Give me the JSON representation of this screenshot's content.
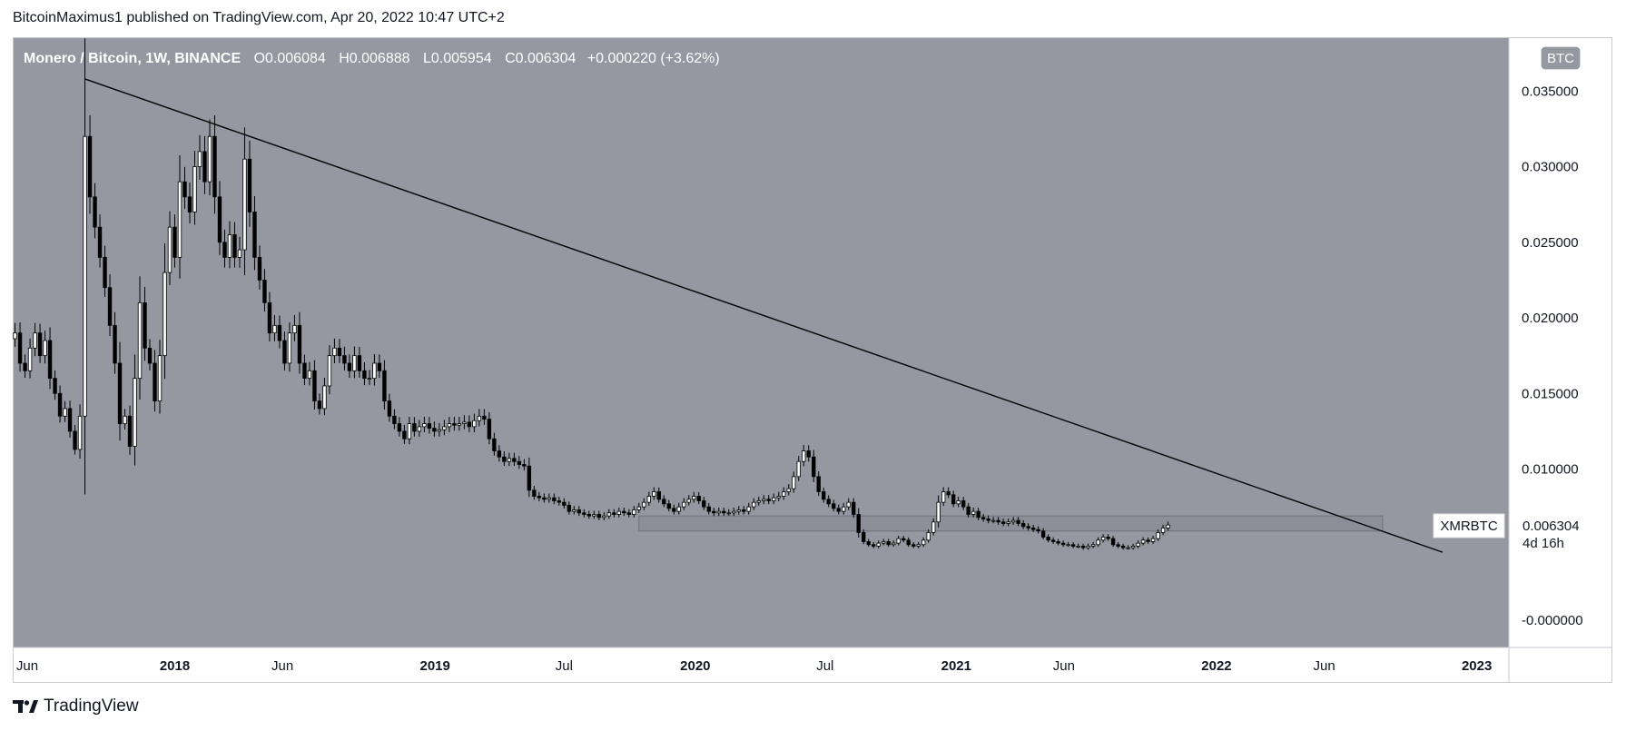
{
  "header": {
    "published_by": "BitcoinMaximus1 published on TradingView.com, Apr 20, 2022 10:47 UTC+2"
  },
  "footer": {
    "brand": "TradingView"
  },
  "legend": {
    "symbol": "Monero / Bitcoin, 1W, BINANCE",
    "o_label": "O",
    "o_value": "0.006084",
    "h_label": "H",
    "h_value": "0.006888",
    "l_label": "L",
    "l_value": "0.005954",
    "c_label": "C",
    "c_value": "0.006304",
    "change": "+0.000220 (+3.62%)"
  },
  "currency_badge": "BTC",
  "price_tag": {
    "ticker": "XMRBTC",
    "price": "0.006304",
    "countdown": "4d 16h"
  },
  "colors": {
    "plot_bg": "#9598a1",
    "candle_up": "#ffffff",
    "candle_down": "#000000",
    "trendline": "#000000",
    "zone": "#8c8f98"
  },
  "chart_data": {
    "type": "candlestick",
    "title": "Monero / Bitcoin, 1W, BINANCE",
    "x_ticks": [
      "Jun",
      "2018",
      "Jun",
      "2019",
      "Jul",
      "2020",
      "Jul",
      "2021",
      "Jun",
      "2022",
      "Jun",
      "2023"
    ],
    "x_tick_dates": [
      "2017-06-01",
      "2018-01-01",
      "2018-06-01",
      "2019-01-01",
      "2019-07-01",
      "2020-01-01",
      "2020-07-01",
      "2021-01-01",
      "2021-06-01",
      "2022-01-01",
      "2022-06-01",
      "2023-01-01"
    ],
    "xlim": [
      "2017-05-20",
      "2023-02-15"
    ],
    "y_ticks": [
      "0.035000",
      "0.030000",
      "0.025000",
      "0.020000",
      "0.015000",
      "0.010000",
      "-0.000000"
    ],
    "y_tick_values": [
      0.035,
      0.03,
      0.025,
      0.02,
      0.015,
      0.01,
      0.0
    ],
    "ylim": [
      -0.0018,
      0.0385
    ],
    "grid": false,
    "trendline": {
      "start": {
        "date": "2017-08-28",
        "price": 0.0358
      },
      "end": {
        "date": "2022-11-14",
        "price": 0.0045
      }
    },
    "horizontal_zone": {
      "start_date": "2019-10-14",
      "end_date": "2022-08-22",
      "low": 0.0059,
      "high": 0.0069
    },
    "last_close": 0.006304,
    "weekly_close_series": {
      "start_date": "2017-05-22",
      "interval_days": 7,
      "close": [
        0.019,
        0.017,
        0.0165,
        0.018,
        0.019,
        0.0175,
        0.0185,
        0.016,
        0.015,
        0.0135,
        0.014,
        0.0125,
        0.0113,
        0.0135,
        0.032,
        0.028,
        0.026,
        0.024,
        0.022,
        0.0195,
        0.017,
        0.013,
        0.0135,
        0.0115,
        0.016,
        0.021,
        0.018,
        0.017,
        0.0145,
        0.0175,
        0.023,
        0.026,
        0.024,
        0.029,
        0.028,
        0.027,
        0.03,
        0.031,
        0.029,
        0.032,
        0.028,
        0.025,
        0.024,
        0.0255,
        0.024,
        0.0245,
        0.0305,
        0.027,
        0.024,
        0.0225,
        0.021,
        0.019,
        0.0195,
        0.0185,
        0.017,
        0.019,
        0.0195,
        0.017,
        0.016,
        0.0165,
        0.0145,
        0.014,
        0.0155,
        0.0175,
        0.018,
        0.0175,
        0.017,
        0.0165,
        0.0175,
        0.0165,
        0.016,
        0.016,
        0.017,
        0.0165,
        0.0145,
        0.0135,
        0.013,
        0.0125,
        0.012,
        0.013,
        0.0125,
        0.0128,
        0.013,
        0.0127,
        0.0125,
        0.0126,
        0.0128,
        0.013,
        0.0129,
        0.013,
        0.0131,
        0.0128,
        0.0132,
        0.0135,
        0.0133,
        0.012,
        0.0112,
        0.0108,
        0.0105,
        0.0107,
        0.0105,
        0.0103,
        0.0102,
        0.0086,
        0.0082,
        0.0081,
        0.008,
        0.0081,
        0.0079,
        0.0078,
        0.0076,
        0.0072,
        0.0073,
        0.0071,
        0.007,
        0.0069,
        0.007,
        0.0068,
        0.0069,
        0.0071,
        0.007,
        0.0072,
        0.0071,
        0.007,
        0.0073,
        0.0075,
        0.0078,
        0.0082,
        0.0085,
        0.008,
        0.0077,
        0.0074,
        0.0072,
        0.0075,
        0.0078,
        0.008,
        0.0082,
        0.0079,
        0.0075,
        0.0072,
        0.0071,
        0.0072,
        0.0071,
        0.0071,
        0.0072,
        0.0073,
        0.0072,
        0.0075,
        0.0078,
        0.0079,
        0.008,
        0.0079,
        0.0081,
        0.0082,
        0.0085,
        0.0087,
        0.0095,
        0.0105,
        0.0112,
        0.0108,
        0.0095,
        0.0085,
        0.008,
        0.0077,
        0.0074,
        0.0072,
        0.0075,
        0.0078,
        0.007,
        0.0058,
        0.0052,
        0.005,
        0.0049,
        0.0051,
        0.0052,
        0.005,
        0.0051,
        0.0054,
        0.0053,
        0.005,
        0.0049,
        0.005,
        0.0053,
        0.0058,
        0.0065,
        0.0078,
        0.0085,
        0.0083,
        0.0077,
        0.0079,
        0.0075,
        0.007,
        0.0072,
        0.0068,
        0.0067,
        0.0066,
        0.0066,
        0.0065,
        0.0064,
        0.0065,
        0.0066,
        0.0064,
        0.0062,
        0.0061,
        0.006,
        0.0059,
        0.0055,
        0.0053,
        0.0052,
        0.0051,
        0.005,
        0.005,
        0.0049,
        0.0049,
        0.0048,
        0.0049,
        0.005,
        0.0053,
        0.0055,
        0.0054,
        0.005,
        0.0049,
        0.0048,
        0.0048,
        0.0049,
        0.0051,
        0.0053,
        0.0052,
        0.0054,
        0.0058,
        0.0061,
        0.0063
      ]
    }
  }
}
